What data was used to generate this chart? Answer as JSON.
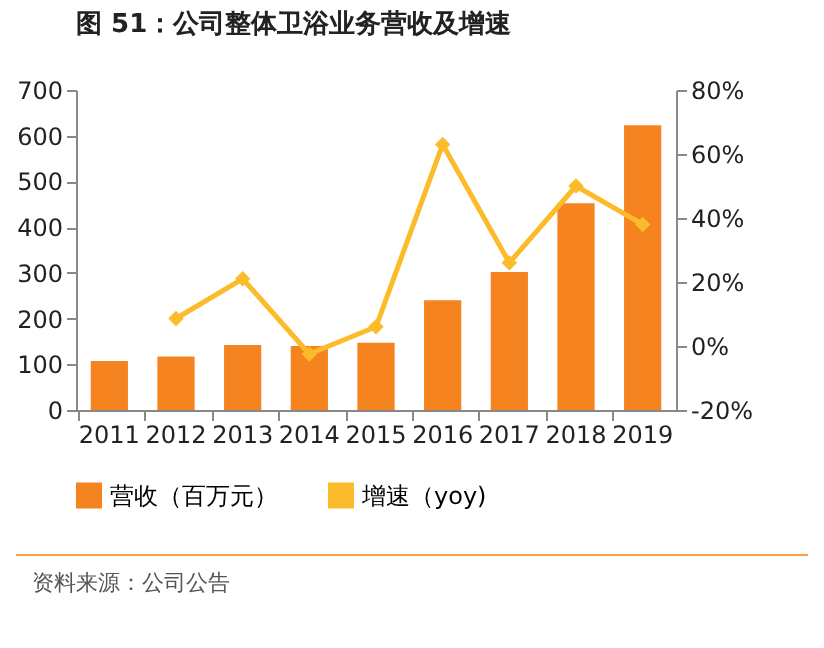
{
  "chart_data": {
    "type": "bar",
    "title": "图 51：公司整体卫浴业务营收及增速",
    "categories": [
      "2011",
      "2012",
      "2013",
      "2014",
      "2015",
      "2016",
      "2017",
      "2018",
      "2019"
    ],
    "series": [
      {
        "name": "营收（百万元）",
        "color": "#f5831f",
        "values": [
          107,
          117,
          142,
          140,
          147,
          240,
          302,
          452,
          623
        ]
      },
      {
        "name": "增速（yoy)",
        "type": "line",
        "axis": "y2",
        "color": "#fcbb2b",
        "marker": "diamond",
        "values": [
          null,
          8.6,
          21,
          -2.5,
          6,
          63,
          26,
          50,
          38
        ]
      }
    ],
    "ylim": [
      0,
      700
    ],
    "yticks": [
      0,
      100,
      200,
      300,
      400,
      500,
      600,
      700
    ],
    "y2lim": [
      -20,
      80
    ],
    "y2ticks": [
      {
        "value": -20,
        "label": "-20%"
      },
      {
        "value": 0,
        "label": "0%"
      },
      {
        "value": 20,
        "label": "20%"
      },
      {
        "value": 40,
        "label": "40%"
      },
      {
        "value": 60,
        "label": "60%"
      },
      {
        "value": 80,
        "label": "80%"
      }
    ],
    "grid": false,
    "legend": "bottom",
    "annotations": [
      "资料来源：公司公告"
    ]
  }
}
